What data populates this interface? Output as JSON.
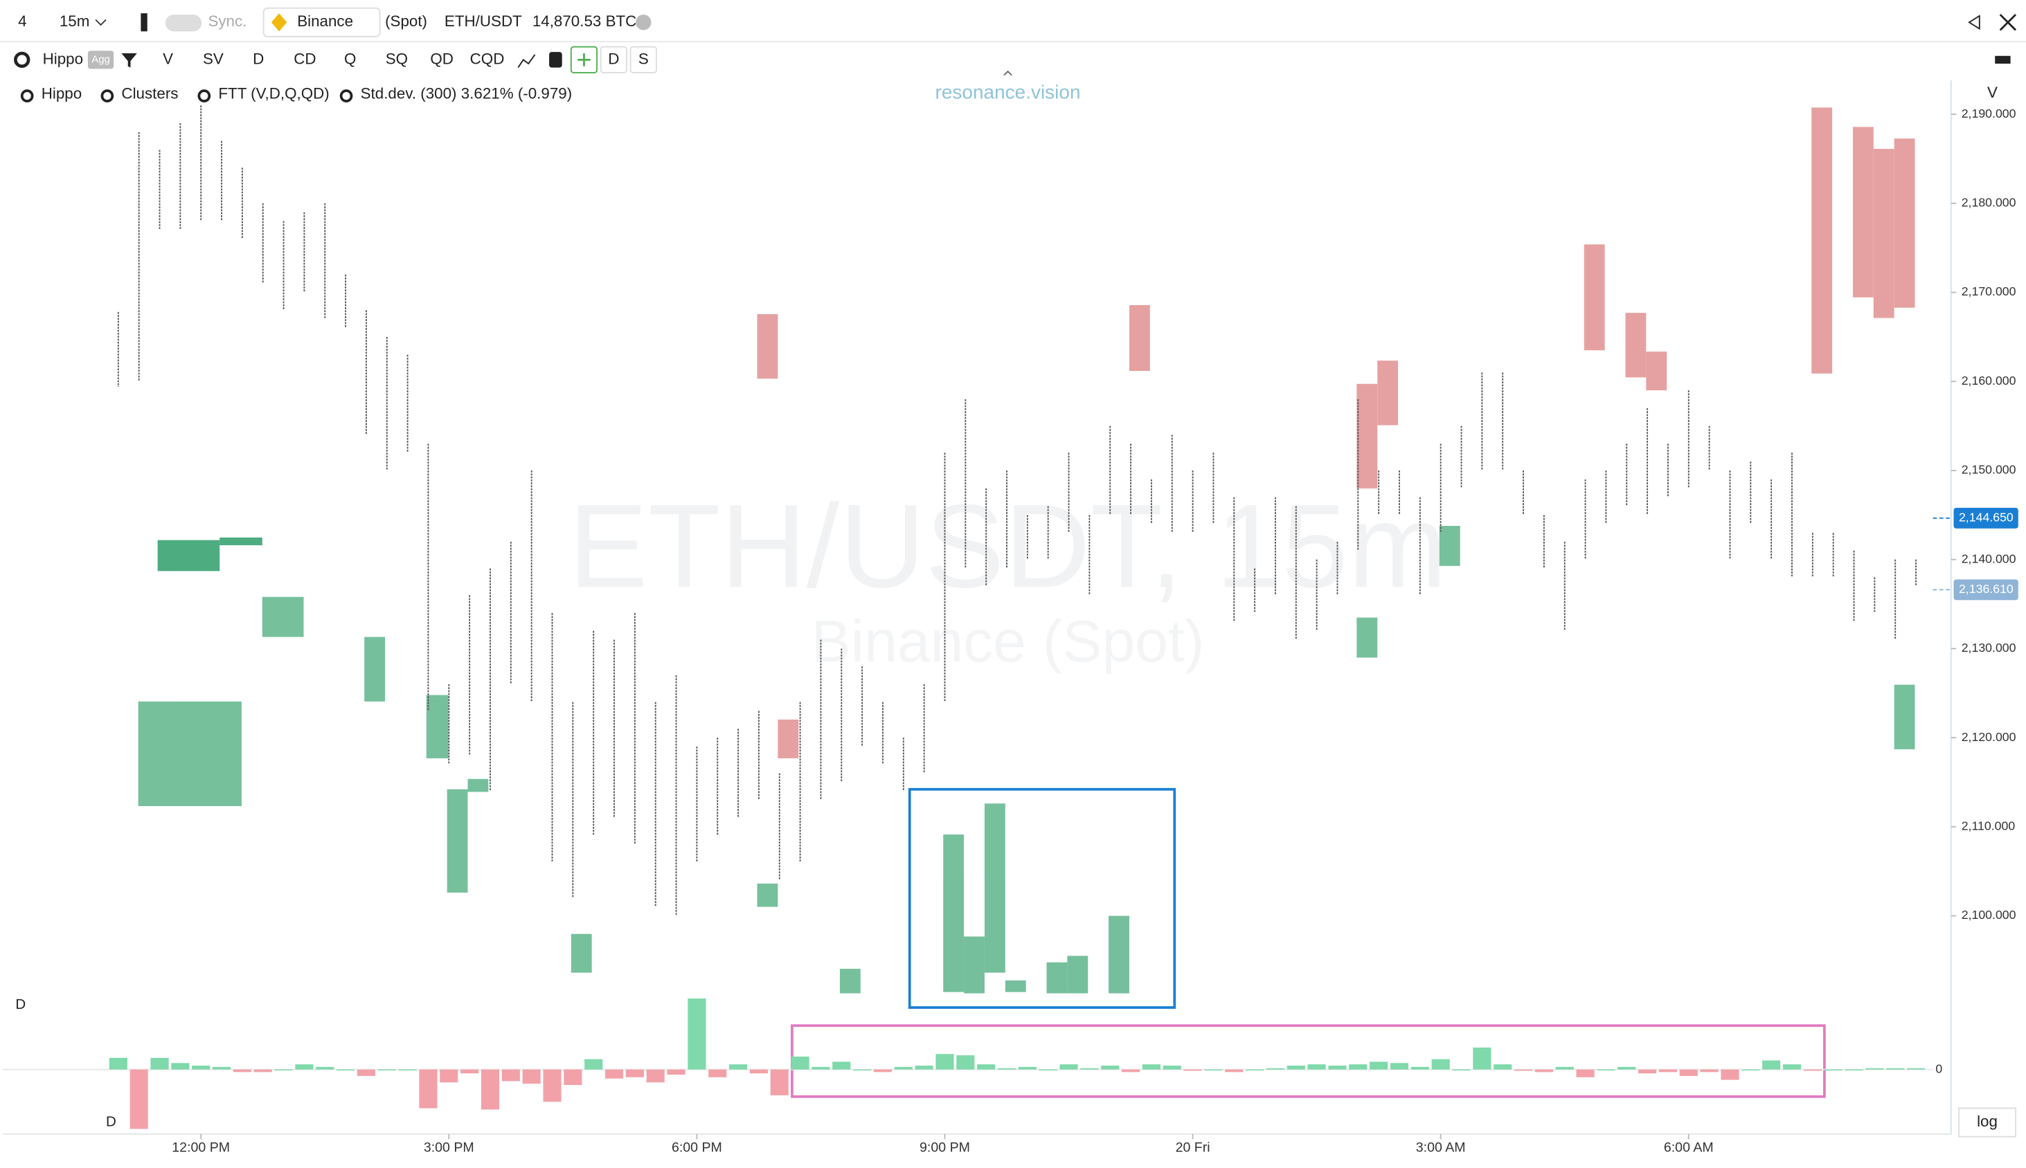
{
  "ui": {
    "toolbar": [
      "4",
      "15m",
      "Sync.",
      "Binance",
      "(Spot)",
      "ETH/USDT",
      "14,870.53 BTC"
    ],
    "toolbar2": [
      "Hippo",
      "Agg",
      "V",
      "SV",
      "D",
      "CD",
      "Q",
      "SQ",
      "QD",
      "CQD",
      "D",
      "S"
    ],
    "legend": [
      "Hippo",
      "Clusters",
      "FTT (V,D,Q,QD)",
      "Std.dev. (300) 3.621% (-0.979)"
    ],
    "watermark": "resonance.vision",
    "symbol": "ETH/USDT, 15m",
    "exchange": "Binance (Spot)",
    "scale_label": "V",
    "pane_label": "D",
    "pane_label2": "D",
    "log": "log"
  },
  "chart_data": {
    "type": "candlestick",
    "high": [
      2167.8,
      2188,
      2186,
      2189,
      2191,
      2187,
      2184,
      2180,
      2178,
      2179,
      2180,
      2172,
      2168,
      2165,
      2163,
      2153,
      2126,
      2136,
      2139,
      2142,
      2150,
      2134,
      2124,
      2132,
      2131,
      2134,
      2124,
      2127,
      2119,
      2120,
      2121,
      2123,
      2116,
      2124,
      2131,
      2130,
      2128,
      2124,
      2120,
      2126,
      2152,
      2158,
      2148,
      2150,
      2145,
      2146,
      2152,
      2145,
      2155,
      2153,
      2149,
      2154,
      2150,
      2152,
      2147,
      2139,
      2147,
      2146,
      2140,
      2142,
      2158,
      2150,
      2150,
      2147,
      2153,
      2155,
      2161,
      2161,
      2150,
      2145,
      2142,
      2149,
      2150,
      2153,
      2157,
      2153,
      2159,
      2155,
      2150,
      2151,
      2149,
      2152,
      2143,
      2143,
      2141,
      2138,
      2140,
      2140
    ],
    "low": [
      2159.4,
      2160,
      2177,
      2177,
      2178,
      2178,
      2176,
      2171,
      2168,
      2170,
      2167,
      2166,
      2154,
      2150,
      2152,
      2123,
      2117,
      2118,
      2114,
      2126,
      2124,
      2106,
      2102,
      2109,
      2111,
      2108,
      2101,
      2100,
      2106,
      2109,
      2111,
      2113,
      2104,
      2106,
      2113,
      2115,
      2119,
      2117,
      2114,
      2116,
      2124,
      2139,
      2137,
      2139,
      2140,
      2140,
      2143,
      2136,
      2145,
      2145,
      2144,
      2143,
      2143,
      2144,
      2133,
      2134,
      2136,
      2131,
      2132,
      2136,
      2141,
      2145,
      2145,
      2136,
      2143,
      2148,
      2150,
      2150,
      2145,
      2139,
      2132,
      2140,
      2144,
      2146,
      2145,
      2147,
      2148,
      2150,
      2140,
      2144,
      2140,
      2138,
      2138,
      2138,
      2133,
      2134,
      2131,
      2137
    ],
    "xlim": [
      -5.6,
      88.7
    ],
    "xticks": [
      {
        "value": 4,
        "label": "12:00 PM"
      },
      {
        "value": 16,
        "label": "3:00 PM"
      },
      {
        "value": 28,
        "label": "6:00 PM"
      },
      {
        "value": 40,
        "label": "9:00 PM"
      },
      {
        "value": 52,
        "label": "20 Fri"
      },
      {
        "value": 64,
        "label": "3:00 AM"
      },
      {
        "value": 76,
        "label": "6:00 AM"
      }
    ],
    "ylim": [
      2089.7,
      2193.8
    ],
    "yticks": [
      {
        "value": 2100,
        "label": "2,100.000"
      },
      {
        "value": 2110,
        "label": "2,110.000"
      },
      {
        "value": 2120,
        "label": "2,120.000"
      },
      {
        "value": 2130,
        "label": "2,130.000"
      },
      {
        "value": 2140,
        "label": "2,140.000"
      },
      {
        "value": 2150,
        "label": "2,150.000"
      },
      {
        "value": 2160,
        "label": "2,160.000"
      },
      {
        "value": 2170,
        "label": "2,170.000"
      },
      {
        "value": 2180,
        "label": "2,180.000"
      },
      {
        "value": 2190,
        "label": "2,190.000"
      }
    ],
    "price_labels": [
      {
        "value": 2144.65,
        "label": "2,144.650",
        "color": "#1a7fd4"
      },
      {
        "value": 2136.61,
        "label": "2,136.610",
        "color": "#8fb4d8"
      }
    ],
    "delta": {
      "values": [
        9,
        -46,
        9,
        5,
        3,
        2,
        -2,
        -2,
        0,
        4,
        2,
        0,
        -5,
        0,
        0,
        -30,
        -10,
        -3,
        -31,
        -9,
        -11,
        -25,
        -12,
        8,
        -7,
        -6,
        -10,
        -4,
        55,
        -6,
        4,
        -3,
        -20,
        10,
        2,
        6,
        0,
        -2,
        2,
        3,
        12,
        11,
        4,
        1,
        2,
        0,
        4,
        1,
        3,
        -2,
        4,
        3,
        -1,
        0,
        -2,
        0,
        1,
        3,
        4,
        3,
        4,
        6,
        5,
        2,
        8,
        0,
        17,
        4,
        -1,
        -2,
        2,
        -6,
        0,
        2,
        -3,
        -2,
        -5,
        -2,
        -8,
        0,
        7,
        4,
        -1,
        0,
        0,
        1,
        1,
        1
      ],
      "ylim": [
        -50,
        62
      ],
      "yticks": [
        0
      ],
      "up_color": "#7fd9aa",
      "down_color": "#f2a1a8"
    }
  }
}
